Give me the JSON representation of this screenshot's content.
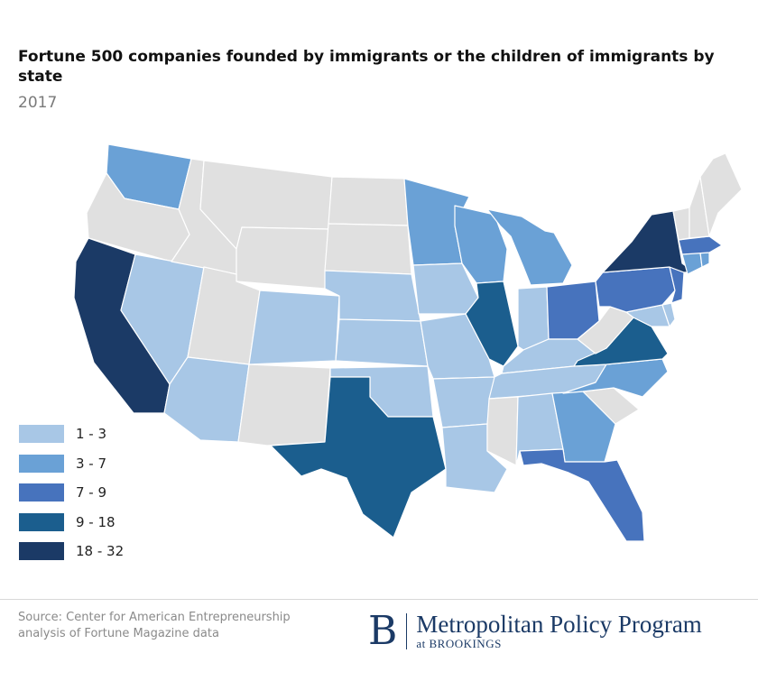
{
  "title": "Fortune 500 companies founded by immigrants or the children of immigrants by state",
  "subtitle": "2017",
  "colors": {
    "none": "#e0e0e0",
    "c1": "#a8c7e6",
    "c2": "#6aa1d6",
    "c3": "#4773bd",
    "c4": "#1b5e8e",
    "c5": "#1b3a66"
  },
  "legend": [
    {
      "label": "1 - 3",
      "key": "c1"
    },
    {
      "label": "3 - 7",
      "key": "c2"
    },
    {
      "label": "7 - 9",
      "key": "c3"
    },
    {
      "label": "9 - 18",
      "key": "c4"
    },
    {
      "label": "18 - 32",
      "key": "c5"
    }
  ],
  "states": {
    "WA": "c2",
    "OR": "none",
    "CA": "c5",
    "NV": "c1",
    "ID": "none",
    "MT": "none",
    "WY": "none",
    "UT": "none",
    "AZ": "c1",
    "CO": "c1",
    "NM": "none",
    "ND": "none",
    "SD": "none",
    "NE": "c1",
    "KS": "c1",
    "OK": "c1",
    "TX": "c4",
    "MN": "c2",
    "IA": "c1",
    "MO": "c1",
    "AR": "c1",
    "LA": "c1",
    "WI": "c2",
    "IL": "c4",
    "MI": "c2",
    "IN": "c1",
    "OH": "c3",
    "KY": "c1",
    "TN": "c1",
    "MS": "none",
    "AL": "c1",
    "GA": "c2",
    "FL": "c3",
    "SC": "none",
    "NC": "c2",
    "VA": "c4",
    "WV": "none",
    "MD": "c1",
    "DE": "c1",
    "PA": "c3",
    "NJ": "c3",
    "NY": "c5",
    "CT": "c2",
    "RI": "c2",
    "MA": "c3",
    "VT": "none",
    "NH": "none",
    "ME": "none"
  },
  "source": "Source: Center for American Entrepreneurship analysis of Fortune Magazine data",
  "brand": {
    "letter": "B",
    "name": "Metropolitan Policy Program",
    "sub": "at BROOKINGS"
  }
}
